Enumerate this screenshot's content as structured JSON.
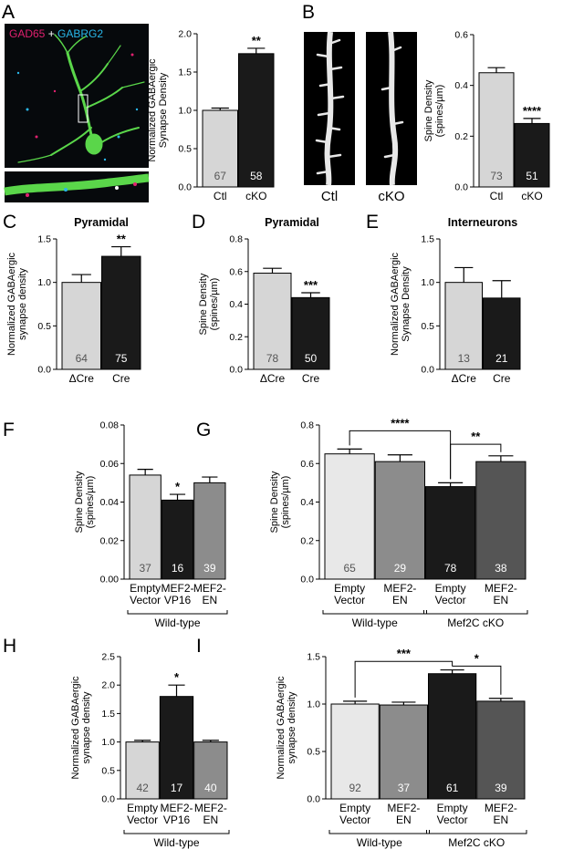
{
  "colors": {
    "light": "#d6d6d6",
    "lighter": "#e8e8e8",
    "dark": "#1a1a1a",
    "gray": "#8c8c8c",
    "darkgray": "#555555",
    "gad65": "#e0206f",
    "gabrg2": "#29b6e8",
    "neuron": "#5ad64a"
  },
  "images": {
    "a_label_gad": "GAD65",
    "a_label_plus": " + ",
    "a_label_gabrg2": "GABRG2",
    "b_ctl": "Ctl",
    "b_cko": "cKO"
  },
  "chart_data": [
    {
      "id": "A",
      "panel_label": "A",
      "type": "bar",
      "title": "",
      "xlabel": "",
      "ylabel_lines": [
        "Normalized GABAergic",
        "Synapse Density"
      ],
      "ylim": [
        0,
        2.0
      ],
      "yticks": [
        "0.0",
        "0.5",
        "1.0",
        "1.5",
        "2.0"
      ],
      "ytick_values": [
        0,
        0.5,
        1.0,
        1.5,
        2.0
      ],
      "categories": [
        [
          "Ctl"
        ],
        [
          "cKO"
        ]
      ],
      "values": [
        1.0,
        1.74
      ],
      "errors": [
        0.03,
        0.07
      ],
      "colors": [
        "light",
        "dark"
      ],
      "n": [
        "67",
        "58"
      ],
      "significance": [
        {
          "bar": 1,
          "label": "**"
        }
      ],
      "brackets": [],
      "groups": []
    },
    {
      "id": "B",
      "panel_label": "",
      "type": "bar",
      "title": "",
      "xlabel": "",
      "ylabel_lines": [
        "Spine Density",
        "(spines/µm)"
      ],
      "ylim": [
        0,
        0.6
      ],
      "yticks": [
        "0.0",
        "0.2",
        "0.4",
        "0.6"
      ],
      "ytick_values": [
        0,
        0.2,
        0.4,
        0.6
      ],
      "categories": [
        [
          "Ctl"
        ],
        [
          "cKO"
        ]
      ],
      "values": [
        0.45,
        0.25
      ],
      "errors": [
        0.02,
        0.02
      ],
      "colors": [
        "light",
        "dark"
      ],
      "n": [
        "73",
        "51"
      ],
      "significance": [
        {
          "bar": 1,
          "label": "****"
        }
      ],
      "brackets": [],
      "groups": []
    },
    {
      "id": "C",
      "panel_label": "C",
      "type": "bar",
      "title": "Pyramidal",
      "xlabel": "",
      "ylabel_lines": [
        "Normalized GABAergic",
        "synapse density"
      ],
      "ylim": [
        0,
        1.5
      ],
      "yticks": [
        "0.0",
        "0.5",
        "1.0",
        "1.5"
      ],
      "ytick_values": [
        0,
        0.5,
        1.0,
        1.5
      ],
      "categories": [
        [
          "ΔCre"
        ],
        [
          "Cre"
        ]
      ],
      "values": [
        1.0,
        1.3
      ],
      "errors": [
        0.09,
        0.11
      ],
      "colors": [
        "light",
        "dark"
      ],
      "n": [
        "64",
        "75"
      ],
      "significance": [
        {
          "bar": 1,
          "label": "**"
        }
      ],
      "brackets": [],
      "groups": []
    },
    {
      "id": "D",
      "panel_label": "D",
      "type": "bar",
      "title": "Pyramidal",
      "xlabel": "",
      "ylabel_lines": [
        "Spine Density",
        "(spines/µm)"
      ],
      "ylim": [
        0,
        0.8
      ],
      "yticks": [
        "0.0",
        "0.2",
        "0.4",
        "0.6",
        "0.8"
      ],
      "ytick_values": [
        0,
        0.2,
        0.4,
        0.6,
        0.8
      ],
      "categories": [
        [
          "ΔCre"
        ],
        [
          "Cre"
        ]
      ],
      "values": [
        0.59,
        0.44
      ],
      "errors": [
        0.03,
        0.03
      ],
      "colors": [
        "light",
        "dark"
      ],
      "n": [
        "78",
        "50"
      ],
      "significance": [
        {
          "bar": 1,
          "label": "***"
        }
      ],
      "brackets": [],
      "groups": []
    },
    {
      "id": "E",
      "panel_label": "E",
      "type": "bar",
      "title": "Interneurons",
      "xlabel": "",
      "ylabel_lines": [
        "Normalized GABAergic",
        "Synapse Density"
      ],
      "ylim": [
        0,
        1.5
      ],
      "yticks": [
        "0.0",
        "0.5",
        "1.0",
        "1.5"
      ],
      "ytick_values": [
        0,
        0.5,
        1.0,
        1.5
      ],
      "categories": [
        [
          "ΔCre"
        ],
        [
          "Cre"
        ]
      ],
      "values": [
        1.0,
        0.82
      ],
      "errors": [
        0.17,
        0.2
      ],
      "colors": [
        "light",
        "dark"
      ],
      "n": [
        "13",
        "21"
      ],
      "significance": [],
      "brackets": [],
      "groups": []
    },
    {
      "id": "F",
      "panel_label": "F",
      "type": "bar",
      "title": "",
      "xlabel": "",
      "ylabel_lines": [
        "Spine Density",
        "(spines/µm)"
      ],
      "ylim": [
        0,
        0.08
      ],
      "yticks": [
        "0.00",
        "0.02",
        "0.04",
        "0.06",
        "0.08"
      ],
      "ytick_values": [
        0,
        0.02,
        0.04,
        0.06,
        0.08
      ],
      "categories": [
        [
          "Empty",
          "Vector"
        ],
        [
          "MEF2-",
          "VP16"
        ],
        [
          "MEF2-",
          "EN"
        ]
      ],
      "values": [
        0.054,
        0.041,
        0.05
      ],
      "errors": [
        0.003,
        0.003,
        0.003
      ],
      "colors": [
        "light",
        "dark",
        "gray"
      ],
      "n": [
        "37",
        "16",
        "39"
      ],
      "significance": [
        {
          "bar": 1,
          "label": "*"
        }
      ],
      "brackets": [],
      "groups": [
        {
          "label": "Wild-type",
          "from": 0,
          "to": 2
        }
      ]
    },
    {
      "id": "G",
      "panel_label": "G",
      "type": "bar",
      "title": "",
      "xlabel": "",
      "ylabel_lines": [
        "Spine Density",
        "(spines/µm)"
      ],
      "ylim": [
        0,
        0.8
      ],
      "yticks": [
        "0.0",
        "0.2",
        "0.4",
        "0.6",
        "0.8"
      ],
      "ytick_values": [
        0,
        0.2,
        0.4,
        0.6,
        0.8
      ],
      "categories": [
        [
          "Empty",
          "Vector"
        ],
        [
          "MEF2-",
          "EN"
        ],
        [
          "Empty",
          "Vector"
        ],
        [
          "MEF2-",
          "EN"
        ]
      ],
      "values": [
        0.65,
        0.61,
        0.48,
        0.61
      ],
      "errors": [
        0.025,
        0.035,
        0.02,
        0.03
      ],
      "colors": [
        "lighter",
        "gray",
        "dark",
        "darkgray"
      ],
      "n": [
        "65",
        "29",
        "78",
        "38"
      ],
      "significance": [],
      "brackets": [
        {
          "from": 0,
          "to": 2,
          "level": 0.77,
          "label": "****"
        },
        {
          "from": 2,
          "to": 3,
          "level": 0.7,
          "label": "**"
        }
      ],
      "groups": [
        {
          "label": "Wild-type",
          "from": 0,
          "to": 1
        },
        {
          "label": "Mef2C cKO",
          "from": 2,
          "to": 3
        }
      ]
    },
    {
      "id": "H",
      "panel_label": "H",
      "type": "bar",
      "title": "",
      "xlabel": "",
      "ylabel_lines": [
        "Normalized GABAergic",
        "synapse density"
      ],
      "ylim": [
        0,
        2.5
      ],
      "yticks": [
        "0.0",
        "0.5",
        "1.0",
        "1.5",
        "2.0",
        "2.5"
      ],
      "ytick_values": [
        0,
        0.5,
        1.0,
        1.5,
        2.0,
        2.5
      ],
      "categories": [
        [
          "Empty",
          "Vector"
        ],
        [
          "MEF2-",
          "VP16"
        ],
        [
          "MEF2-",
          "EN"
        ]
      ],
      "values": [
        1.0,
        1.8,
        1.0
      ],
      "errors": [
        0.03,
        0.2,
        0.03
      ],
      "colors": [
        "light",
        "dark",
        "gray"
      ],
      "n": [
        "42",
        "17",
        "40"
      ],
      "significance": [
        {
          "bar": 1,
          "label": "*"
        }
      ],
      "brackets": [],
      "groups": [
        {
          "label": "Wild-type",
          "from": 0,
          "to": 2
        }
      ]
    },
    {
      "id": "I",
      "panel_label": "I",
      "type": "bar",
      "title": "",
      "xlabel": "",
      "ylabel_lines": [
        "Normalized GABAergic",
        "synapse density"
      ],
      "ylim": [
        0,
        1.5
      ],
      "yticks": [
        "0.0",
        "0.5",
        "1.0",
        "1.5"
      ],
      "ytick_values": [
        0,
        0.5,
        1.0,
        1.5
      ],
      "categories": [
        [
          "Empty",
          "Vector"
        ],
        [
          "MEF2-",
          "EN"
        ],
        [
          "Empty",
          "Vector"
        ],
        [
          "MEF2-",
          "EN"
        ]
      ],
      "values": [
        1.0,
        0.99,
        1.32,
        1.03
      ],
      "errors": [
        0.03,
        0.03,
        0.04,
        0.03
      ],
      "colors": [
        "lighter",
        "gray",
        "dark",
        "darkgray"
      ],
      "n": [
        "92",
        "37",
        "61",
        "39"
      ],
      "significance": [],
      "brackets": [
        {
          "from": 0,
          "to": 2,
          "level": 1.45,
          "label": "***"
        },
        {
          "from": 2,
          "to": 3,
          "level": 1.4,
          "label": "*"
        }
      ],
      "groups": [
        {
          "label": "Wild-type",
          "from": 0,
          "to": 1
        },
        {
          "label": "Mef2C cKO",
          "from": 2,
          "to": 3
        }
      ]
    }
  ]
}
